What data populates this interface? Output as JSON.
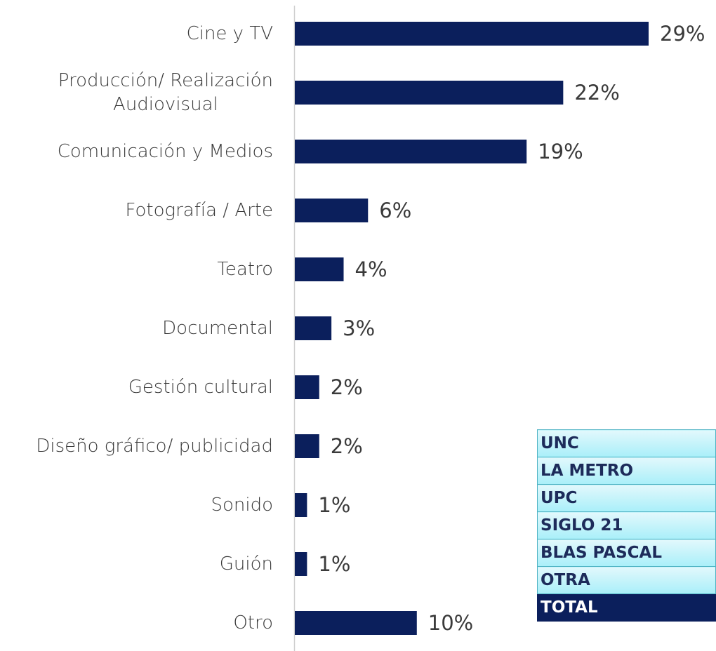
{
  "chart_data": {
    "type": "bar",
    "orientation": "horizontal",
    "categories": [
      "Cine y TV",
      "Producción/ Realización\nAudiovisual",
      "Comunicación y Medios",
      "Fotografía / Arte",
      "Teatro",
      "Documental",
      "Gestión cultural",
      "Diseño gráfico/ publicidad",
      "Sonido",
      "Guión",
      "Otro"
    ],
    "values": [
      29,
      22,
      19,
      6,
      4,
      3,
      2,
      2,
      1,
      1,
      10
    ],
    "value_labels": [
      "29%",
      "22%",
      "19%",
      "6%",
      "4%",
      "3%",
      "2%",
      "2%",
      "1%",
      "1%",
      "10%"
    ],
    "color": "#0b1f5c"
  },
  "legend_table": {
    "rows": [
      "UNC",
      "LA METRO",
      "UPC",
      "SIGLO 21",
      "BLAS PASCAL",
      "OTRA",
      "TOTAL"
    ]
  }
}
